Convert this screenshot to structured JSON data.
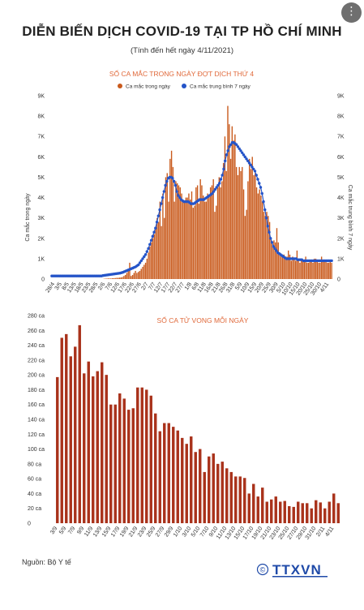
{
  "header": {
    "title": "DIỄN BIẾN DỊCH COVID-19 TẠI TP HỒ CHÍ MINH",
    "subtitle": "(Tính đến hết ngày 4/11/2021)"
  },
  "footer": {
    "source": "Nguồn: Bộ Y tế",
    "logo_text": "TTXVN",
    "logo_copyright": "©"
  },
  "more_button": {
    "icon": "more-vertical-icon",
    "glyph": "⋮"
  },
  "colors": {
    "bar_cases": "#c95a1c",
    "avg_line": "#2454c8",
    "bar_deaths": "#a9321b",
    "chart_title": "#e0693a"
  },
  "chart_data": [
    {
      "type": "bar",
      "title": "SỐ CA MẮC TRONG NGÀY ĐỢT DỊCH THỨ 4",
      "ylabel_left": "Ca mắc trong ngày",
      "ylabel_right": "Ca mắc trung bình 7 ngày",
      "ylim": [
        0,
        9000
      ],
      "y_ticks": [
        "0",
        "1K",
        "2K",
        "3K",
        "4K",
        "5K",
        "6K",
        "7K",
        "8K",
        "9K"
      ],
      "x_tick_labels": [
        "28/4",
        "3/5",
        "8/5",
        "13/5",
        "18/5",
        "23/5",
        "28/5",
        "2/6",
        "7/6",
        "12/6",
        "17/6",
        "22/6",
        "27/6",
        "2/7",
        "7/7",
        "12/7",
        "17/7",
        "22/7",
        "27/7",
        "1/8",
        "6/8",
        "11/8",
        "16/8",
        "21/8",
        "26/8",
        "31/8",
        "5/9",
        "10/9",
        "15/9",
        "20/9",
        "25/9",
        "30/9",
        "5/10",
        "10/10",
        "15/10",
        "20/10",
        "25/10",
        "30/10",
        "4/11"
      ],
      "legend_position": "top",
      "series": [
        {
          "name": "Ca mắc trong ngày",
          "type": "bar",
          "values": [
            0,
            0,
            0,
            0,
            0,
            0,
            0,
            0,
            0,
            0,
            0,
            0,
            0,
            0,
            0,
            0,
            0,
            0,
            0,
            0,
            0,
            0,
            0,
            0,
            0,
            0,
            0,
            0,
            0,
            0,
            0,
            0,
            0,
            0,
            0,
            0,
            10,
            20,
            20,
            30,
            30,
            30,
            40,
            40,
            50,
            60,
            60,
            70,
            80,
            100,
            150,
            200,
            300,
            400,
            800,
            150,
            200,
            300,
            400,
            300,
            350,
            400,
            500,
            600,
            700,
            800,
            1000,
            1300,
            1600,
            1800,
            2000,
            2200,
            2500,
            3000,
            2800,
            3800,
            2600,
            4200,
            3000,
            5000,
            5200,
            3800,
            5900,
            6300,
            5500,
            3800,
            4800,
            4700,
            4600,
            4500,
            4200,
            3900,
            3800,
            4000,
            4000,
            4200,
            3900,
            4300,
            3500,
            3600,
            4500,
            4600,
            3700,
            4900,
            4600,
            4100,
            3800,
            3800,
            4200,
            4100,
            4500,
            4600,
            4900,
            3300,
            3600,
            4500,
            5000,
            4500,
            4800,
            5700,
            7000,
            5300,
            8500,
            7600,
            5900,
            7500,
            6800,
            7100,
            5500,
            5100,
            5500,
            5300,
            5500,
            4400,
            3100,
            3400,
            4800,
            5900,
            5400,
            6000,
            5100,
            5200,
            4500,
            4200,
            4400,
            4100,
            3800,
            3300,
            3100,
            3300,
            3100,
            2800,
            2000,
            1700,
            1900,
            1800,
            2500,
            1800,
            1300,
            1100,
            1200,
            1200,
            1000,
            1100,
            1400,
            1200,
            900,
            1100,
            1000,
            900,
            1400,
            900,
            800,
            1000,
            900,
            900,
            1100,
            800,
            800,
            900,
            900,
            800,
            1000,
            1000,
            900,
            800,
            800,
            1100,
            900,
            900,
            900,
            800,
            800,
            900,
            800
          ]
        },
        {
          "name": "Ca mắc trung bình 7 ngày",
          "type": "line",
          "values": [
            150,
            150,
            150,
            150,
            150,
            150,
            150,
            150,
            150,
            150,
            150,
            150,
            150,
            150,
            150,
            150,
            150,
            150,
            150,
            150,
            150,
            150,
            150,
            150,
            150,
            150,
            150,
            150,
            150,
            150,
            150,
            150,
            150,
            150,
            150,
            150,
            170,
            180,
            190,
            200,
            210,
            220,
            230,
            240,
            250,
            260,
            270,
            280,
            290,
            310,
            330,
            360,
            390,
            420,
            450,
            480,
            510,
            540,
            570,
            600,
            650,
            700,
            800,
            900,
            1000,
            1100,
            1200,
            1350,
            1500,
            1700,
            1900,
            2100,
            2300,
            2500,
            2800,
            3100,
            3400,
            3700,
            4000,
            4300,
            4600,
            4800,
            4950,
            5000,
            5000,
            4950,
            4800,
            4600,
            4300,
            4100,
            4000,
            3900,
            3850,
            3800,
            3800,
            3800,
            3800,
            3750,
            3700,
            3700,
            3700,
            3750,
            3800,
            3850,
            3900,
            3900,
            3900,
            3900,
            3950,
            4000,
            4050,
            4100,
            4150,
            4200,
            4300,
            4400,
            4500,
            4600,
            4700,
            4900,
            5100,
            5400,
            5800,
            6100,
            6300,
            6500,
            6600,
            6700,
            6700,
            6650,
            6600,
            6500,
            6400,
            6300,
            6200,
            6100,
            6000,
            5900,
            5800,
            5700,
            5600,
            5500,
            5400,
            5300,
            5100,
            4900,
            4700,
            4500,
            4200,
            3800,
            3400,
            3000,
            2600,
            2300,
            2000,
            1800,
            1600,
            1500,
            1400,
            1300,
            1250,
            1200,
            1150,
            1100,
            1050,
            1000,
            1000,
            1000,
            1000,
            1000,
            1000,
            1000,
            1000,
            950,
            950,
            950,
            950,
            900,
            900,
            900,
            900,
            900,
            900,
            900,
            900,
            900,
            900,
            900,
            900,
            900,
            900,
            900,
            900,
            900,
            900,
            900,
            900,
            900
          ]
        }
      ]
    },
    {
      "type": "bar",
      "title": "SỐ CA TỬ VONG MỖI NGÀY",
      "ylim": [
        0,
        280
      ],
      "y_ticks": [
        "0",
        "20 ca",
        "40 ca",
        "60 ca",
        "80 ca",
        "100 ca",
        "120 ca",
        "140 ca",
        "160 ca",
        "180 ca",
        "200 ca",
        "220 ca",
        "240 ca",
        "260 ca",
        "280 ca"
      ],
      "x_tick_labels": [
        "3/9",
        "5/9",
        "7/9",
        "9/9",
        "11/9",
        "13/9",
        "15/9",
        "17/9",
        "19/9",
        "21/9",
        "23/9",
        "25/9",
        "27/9",
        "29/9",
        "1/10",
        "3/10",
        "5/10",
        "7/10",
        "9/10",
        "11/10",
        "13/10",
        "15/10",
        "17/10",
        "19/10",
        "21/10",
        "23/10",
        "25/10",
        "27/10",
        "29/10",
        "31/10",
        "2/11",
        "4/11"
      ],
      "series": [
        {
          "name": "",
          "values": [
            197,
            250,
            255,
            225,
            238,
            267,
            202,
            218,
            198,
            205,
            217,
            200,
            160,
            160,
            175,
            168,
            153,
            155,
            183,
            183,
            180,
            172,
            148,
            124,
            135,
            135,
            130,
            125,
            115,
            107,
            117,
            96,
            100,
            69,
            90,
            94,
            80,
            83,
            74,
            69,
            63,
            63,
            61,
            40,
            53,
            36,
            48,
            29,
            32,
            36,
            29,
            30,
            23,
            22,
            29,
            27,
            27,
            20,
            31,
            28,
            20,
            29,
            40,
            27
          ]
        }
      ]
    }
  ]
}
